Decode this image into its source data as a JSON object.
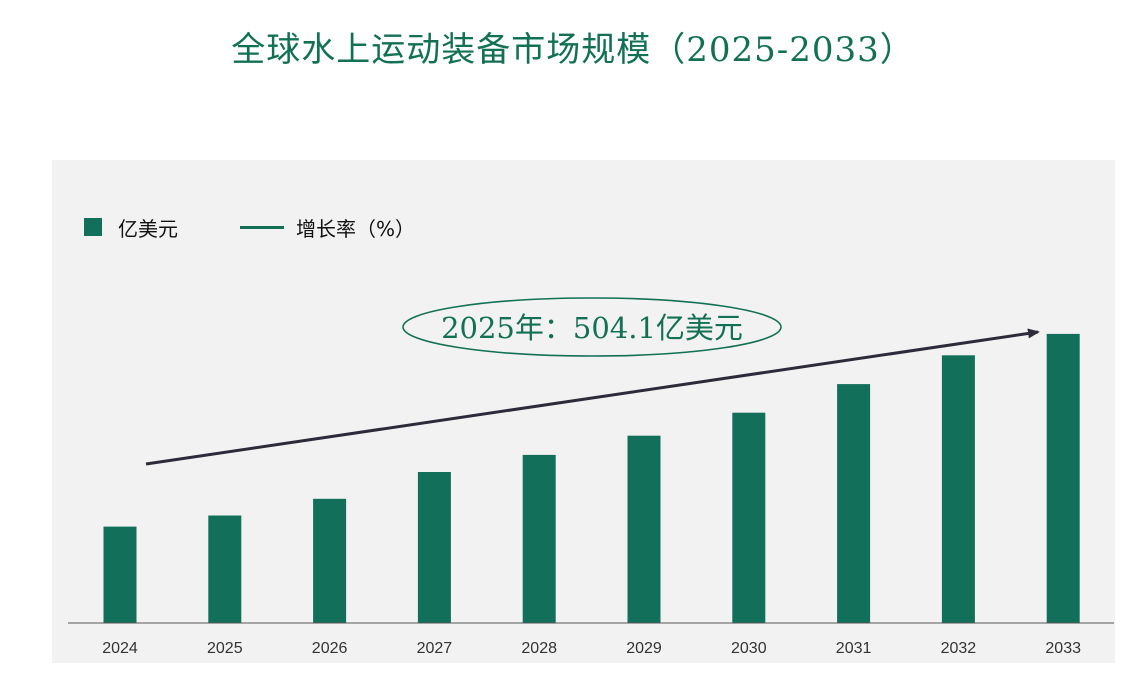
{
  "title": "全球水上运动装备市场规模（2025-2033）",
  "legend": {
    "bar_label": "亿美元",
    "line_label": "增长率（%）"
  },
  "annotation": "2025年：504.1亿美元",
  "colors": {
    "bar": "#12705a",
    "line": "#127055",
    "arrow": "#2d2a3a",
    "panel": "#f2f2f2"
  },
  "chart_data": {
    "type": "bar",
    "title": "全球水上运动装备市场规模（2025-2033）",
    "categories": [
      "2024",
      "2025",
      "2026",
      "2027",
      "2028",
      "2029",
      "2030",
      "2031",
      "2032",
      "2033"
    ],
    "series": [
      {
        "name": "亿美元",
        "values": [
          452,
          504.1,
          582,
          708,
          788,
          878,
          986,
          1120,
          1255,
          1355
        ]
      }
    ],
    "ylim": [
      0,
      1500
    ],
    "grid": false,
    "legend_position": "top-left",
    "trend_arrow": true
  }
}
